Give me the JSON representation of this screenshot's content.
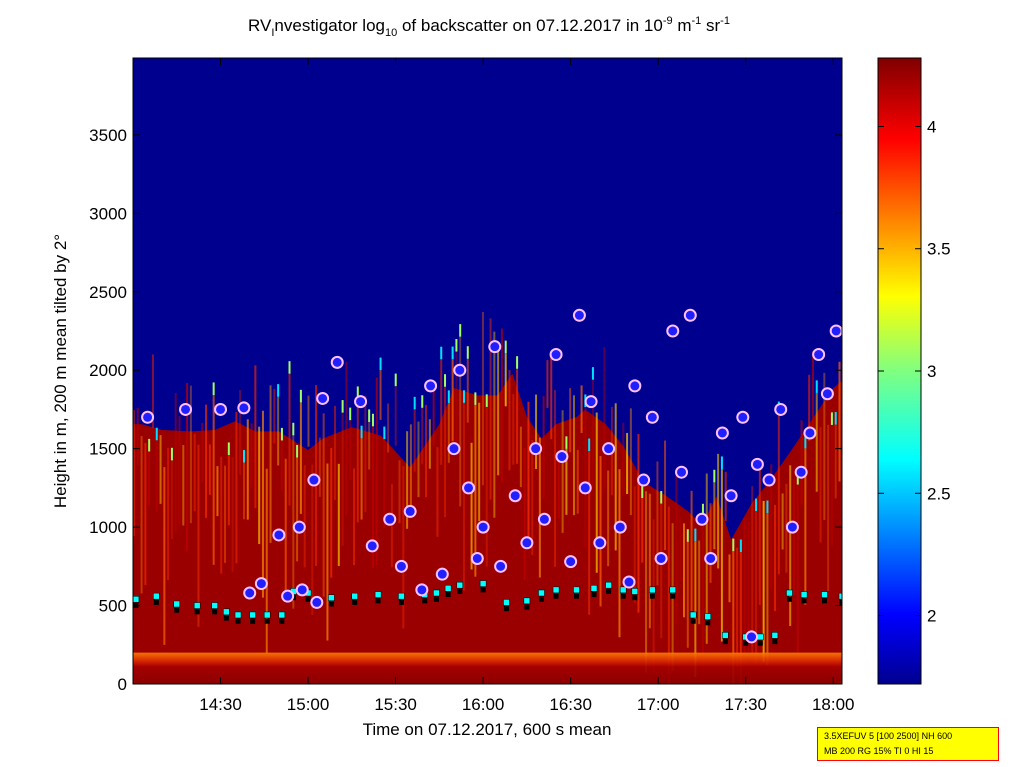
{
  "chart_data": {
    "type": "heatmap",
    "title_parts": {
      "p1": "RV",
      "p2": "I",
      "p3": "nvestigator log",
      "p4": "10",
      "p5": " of backscatter on 07.12.2017 in 10",
      "p6": "-9",
      "p7": " m",
      "p8": "-1",
      "p9": " sr",
      "p10": "-1"
    },
    "xlabel": "Time on 07.12.2017, 600 s mean",
    "ylabel": "Height in m, 200 m mean tilted by 2°",
    "x_ticks": [
      "14:30",
      "15:00",
      "15:30",
      "16:00",
      "16:30",
      "17:00",
      "17:30",
      "18:00"
    ],
    "y_ticks": [
      "0",
      "500",
      "1000",
      "1500",
      "2000",
      "2500",
      "3000",
      "3500"
    ],
    "xlim_minutes_after_1400": [
      0,
      243
    ],
    "ylim": [
      0,
      3990
    ],
    "colorbar": {
      "ticks": [
        "2",
        "2.5",
        "3",
        "3.5",
        "4"
      ],
      "range": [
        1.72,
        4.28
      ],
      "colormap": "jet"
    },
    "grid": false,
    "background_color": "#00008f",
    "boundary_layer_top": [
      [
        3,
        1800
      ],
      [
        10,
        1760
      ],
      [
        20,
        1750
      ],
      [
        28,
        1760
      ],
      [
        35,
        1820
      ],
      [
        42,
        1750
      ],
      [
        50,
        1750
      ],
      [
        60,
        1620
      ],
      [
        65,
        1700
      ],
      [
        75,
        1780
      ],
      [
        85,
        1720
      ],
      [
        95,
        1500
      ],
      [
        100,
        1650
      ],
      [
        105,
        1800
      ],
      [
        110,
        2050
      ],
      [
        118,
        2000
      ],
      [
        125,
        2000
      ],
      [
        130,
        2150
      ],
      [
        135,
        1850
      ],
      [
        140,
        1700
      ],
      [
        145,
        1800
      ],
      [
        152,
        1850
      ],
      [
        155,
        1900
      ],
      [
        162,
        1800
      ],
      [
        168,
        1650
      ],
      [
        175,
        1400
      ],
      [
        183,
        1300
      ],
      [
        190,
        1200
      ],
      [
        195,
        1100
      ],
      [
        200,
        1300
      ],
      [
        205,
        1000
      ],
      [
        212,
        1250
      ],
      [
        218,
        1400
      ],
      [
        225,
        1600
      ],
      [
        230,
        1750
      ],
      [
        235,
        1900
      ],
      [
        240,
        2050
      ],
      [
        243,
        2100
      ]
    ],
    "mixing_layer_height": [
      [
        1,
        500
      ],
      [
        8,
        520
      ],
      [
        15,
        470
      ],
      [
        22,
        460
      ],
      [
        28,
        460
      ],
      [
        32,
        420
      ],
      [
        36,
        400
      ],
      [
        41,
        400
      ],
      [
        46,
        400
      ],
      [
        51,
        400
      ],
      [
        55,
        550
      ],
      [
        60,
        540
      ],
      [
        68,
        510
      ],
      [
        76,
        520
      ],
      [
        84,
        530
      ],
      [
        92,
        520
      ],
      [
        100,
        530
      ],
      [
        104,
        540
      ],
      [
        108,
        570
      ],
      [
        112,
        590
      ],
      [
        120,
        600
      ],
      [
        128,
        480
      ],
      [
        135,
        490
      ],
      [
        140,
        540
      ],
      [
        145,
        560
      ],
      [
        152,
        560
      ],
      [
        158,
        570
      ],
      [
        163,
        590
      ],
      [
        168,
        560
      ],
      [
        172,
        550
      ],
      [
        178,
        560
      ],
      [
        185,
        560
      ],
      [
        192,
        400
      ],
      [
        197,
        390
      ],
      [
        203,
        270
      ],
      [
        210,
        260
      ],
      [
        215,
        260
      ],
      [
        220,
        270
      ],
      [
        225,
        540
      ],
      [
        230,
        530
      ],
      [
        237,
        530
      ],
      [
        243,
        520
      ]
    ],
    "cloud_base_markers": [
      [
        5,
        1700
      ],
      [
        18,
        1750
      ],
      [
        30,
        1750
      ],
      [
        38,
        1760
      ],
      [
        40,
        580
      ],
      [
        44,
        640
      ],
      [
        50,
        950
      ],
      [
        53,
        560
      ],
      [
        57,
        1000
      ],
      [
        58,
        600
      ],
      [
        62,
        1300
      ],
      [
        63,
        520
      ],
      [
        65,
        1820
      ],
      [
        70,
        2050
      ],
      [
        78,
        1800
      ],
      [
        82,
        880
      ],
      [
        88,
        1050
      ],
      [
        92,
        750
      ],
      [
        95,
        1100
      ],
      [
        99,
        600
      ],
      [
        102,
        1900
      ],
      [
        106,
        700
      ],
      [
        110,
        1500
      ],
      [
        112,
        2000
      ],
      [
        115,
        1250
      ],
      [
        118,
        800
      ],
      [
        120,
        1000
      ],
      [
        124,
        2150
      ],
      [
        126,
        750
      ],
      [
        131,
        1200
      ],
      [
        135,
        900
      ],
      [
        138,
        1500
      ],
      [
        141,
        1050
      ],
      [
        145,
        2100
      ],
      [
        147,
        1450
      ],
      [
        150,
        780
      ],
      [
        153,
        2350
      ],
      [
        155,
        1250
      ],
      [
        157,
        1800
      ],
      [
        160,
        900
      ],
      [
        163,
        1500
      ],
      [
        167,
        1000
      ],
      [
        170,
        650
      ],
      [
        172,
        1900
      ],
      [
        175,
        1300
      ],
      [
        178,
        1700
      ],
      [
        181,
        800
      ],
      [
        185,
        2250
      ],
      [
        188,
        1350
      ],
      [
        191,
        2350
      ],
      [
        195,
        1050
      ],
      [
        198,
        800
      ],
      [
        202,
        1600
      ],
      [
        205,
        1200
      ],
      [
        209,
        1700
      ],
      [
        212,
        300
      ],
      [
        214,
        1400
      ],
      [
        218,
        1300
      ],
      [
        222,
        1750
      ],
      [
        226,
        1000
      ],
      [
        229,
        1350
      ],
      [
        232,
        1600
      ],
      [
        235,
        2100
      ],
      [
        238,
        1850
      ],
      [
        241,
        2250
      ]
    ]
  },
  "info_box": {
    "line1": "3.5XEFUV 5 [100 2500] NH 600",
    "line2": "MB 200 RG 15% TI 0 HI 15"
  }
}
